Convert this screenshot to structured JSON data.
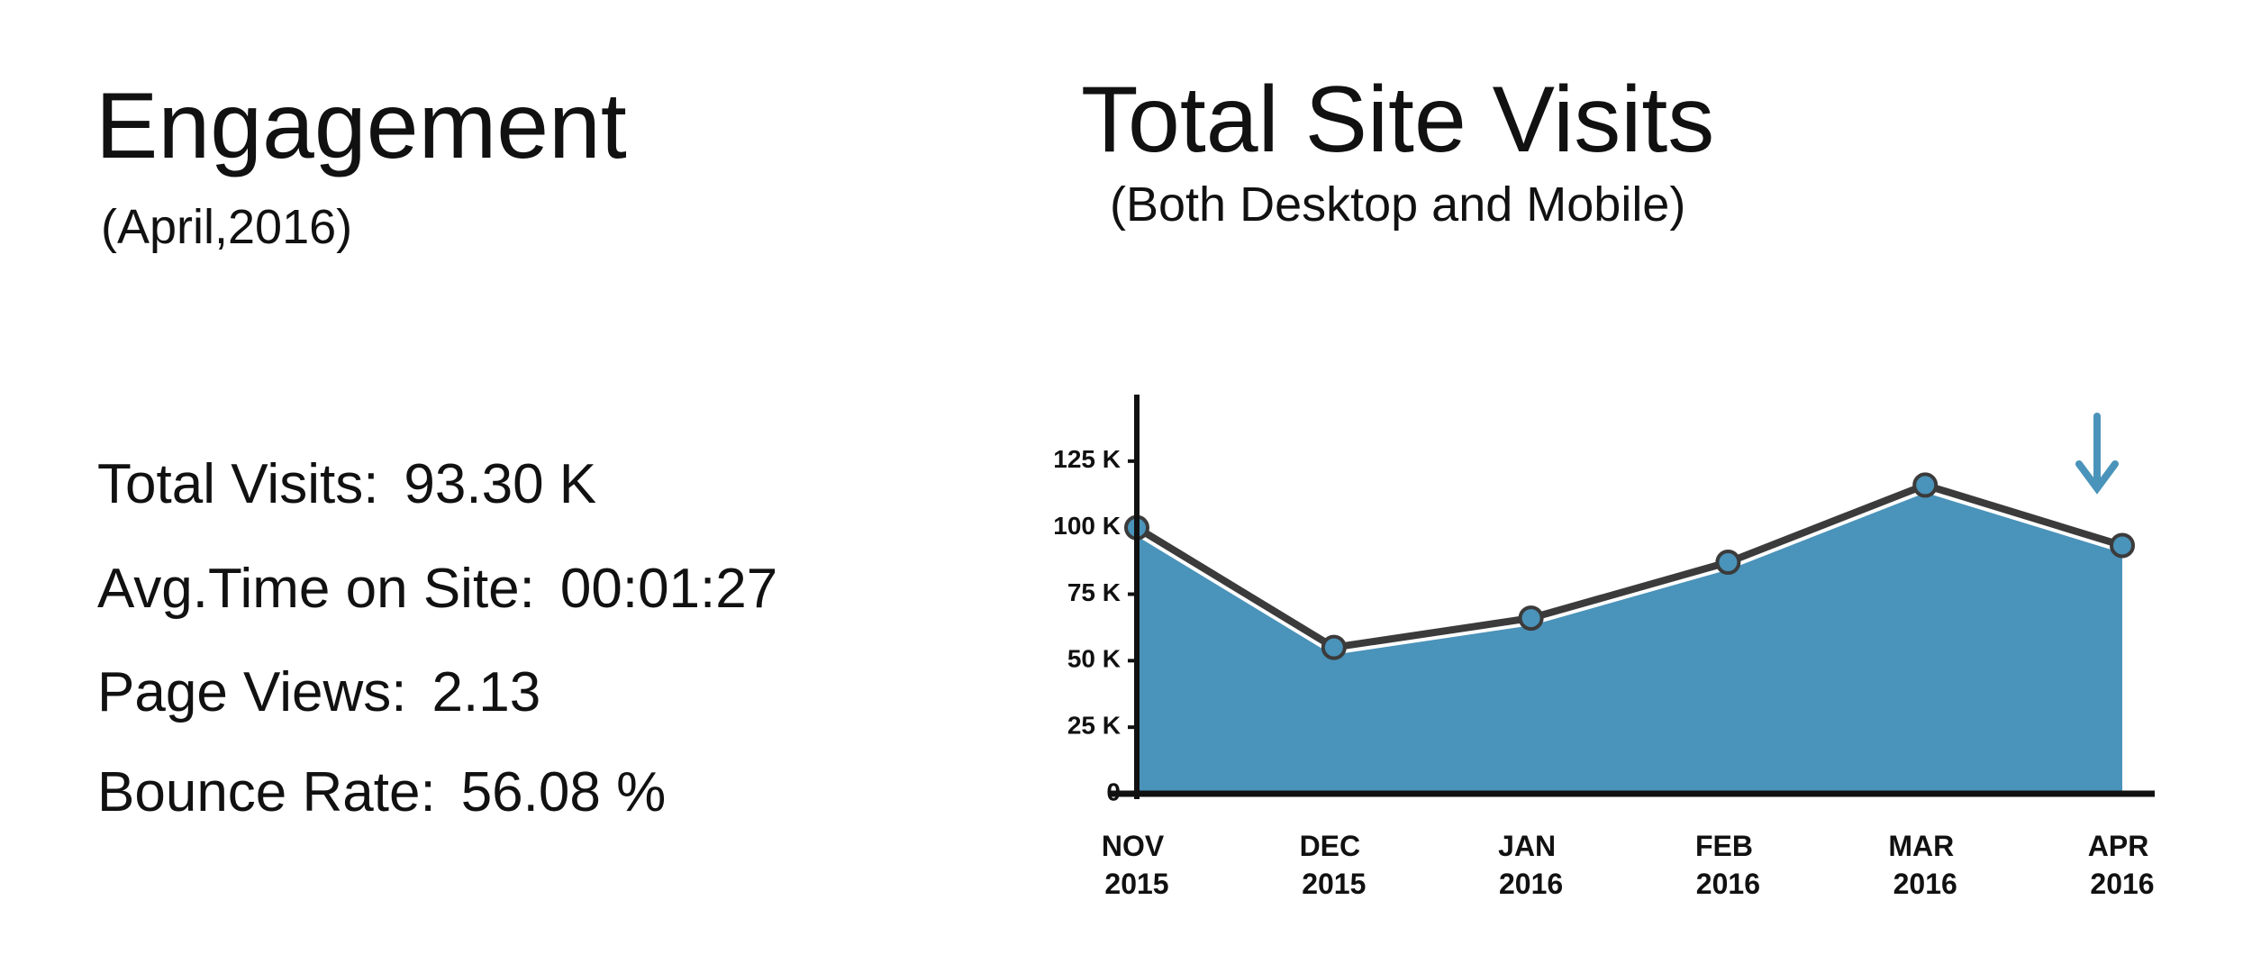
{
  "engagement": {
    "title": "Engagement",
    "subtitle": "(April,2016)",
    "stats": [
      {
        "label": "Total Visits:",
        "value": "93.30 K"
      },
      {
        "label": "Avg.Time on Site:",
        "value": "00:01:27"
      },
      {
        "label": "Page Views:",
        "value": "2.13"
      },
      {
        "label": "Bounce Rate:",
        "value": "56.08 %"
      }
    ]
  },
  "chart_data": {
    "type": "area",
    "title": "Total Site Visits",
    "subtitle": "(Both Desktop and Mobile)",
    "categories": [
      "NOV 2015",
      "DEC 2015",
      "JAN 2016",
      "FEB 2016",
      "MAR 2016",
      "APR 2016"
    ],
    "values": [
      100000,
      55000,
      66000,
      87000,
      116000,
      93300
    ],
    "color": "#4a93ba",
    "line_color": "#3b3b3b",
    "ylim": [
      0,
      150000
    ],
    "yticks": [
      0,
      {
        "value": 25000,
        "label": "25 K"
      },
      {
        "value": 50000,
        "label": "50 K"
      },
      {
        "value": 75000,
        "label": "75 K"
      },
      {
        "value": 100000,
        "label": "100 K"
      },
      {
        "value": 125000,
        "label": "125 K"
      }
    ],
    "grid": false
  }
}
